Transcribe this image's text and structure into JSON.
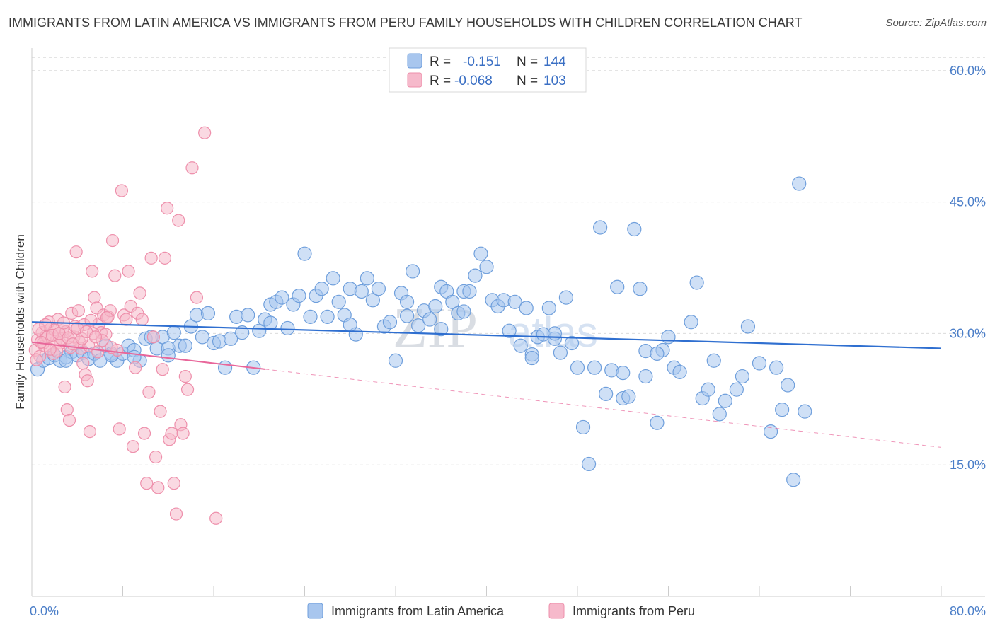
{
  "title": "IMMIGRANTS FROM LATIN AMERICA VS IMMIGRANTS FROM PERU FAMILY HOUSEHOLDS WITH CHILDREN CORRELATION CHART",
  "source": "Source: ZipAtlas.com",
  "watermark": {
    "zip": "ZIP",
    "atlas": "atlas"
  },
  "colors": {
    "blue": "#a8c6ee",
    "blue_stroke": "#6f9fdc",
    "blue_line": "#2f6fd0",
    "pink": "#f6b9cb",
    "pink_stroke": "#ee8fab",
    "pink_line": "#e8669a",
    "tick_text": "#4b7ec8",
    "grid": "#dcdcdc"
  },
  "legend": {
    "r_label": "R =",
    "n_label": "N =",
    "items": [
      {
        "r": "-0.151",
        "n": "144"
      },
      {
        "r": "-0.068",
        "n": "103"
      }
    ]
  },
  "bottom_legend": [
    "Immigrants from Latin America",
    "Immigrants from Peru"
  ],
  "chart_data": {
    "type": "scatter",
    "title": "IMMIGRANTS FROM LATIN AMERICA VS IMMIGRANTS FROM PERU FAMILY HOUSEHOLDS WITH CHILDREN CORRELATION CHART",
    "xlabel": "",
    "ylabel": "Family Households with Children",
    "xlim": [
      0,
      80
    ],
    "ylim": [
      0,
      62
    ],
    "x_tick_labels": [
      "0.0%",
      "80.0%"
    ],
    "y_ticks": [
      15,
      30,
      45,
      60
    ],
    "y_tick_labels": [
      "15.0%",
      "30.0%",
      "45.0%",
      "60.0%"
    ],
    "grid": true,
    "legend_position": "top-center",
    "series": [
      {
        "name": "Immigrants from Latin America",
        "r": -0.151,
        "n": 144,
        "trend": {
          "x": [
            0,
            80
          ],
          "y": [
            31.3,
            28.3
          ]
        },
        "points": [
          [
            0.5,
            25.9
          ],
          [
            1,
            26.9
          ],
          [
            1.5,
            27.2
          ],
          [
            2,
            27.5
          ],
          [
            2.5,
            26.9
          ],
          [
            3,
            27.3
          ],
          [
            3.5,
            27.9
          ],
          [
            4,
            27.5
          ],
          [
            4.5,
            27.8
          ],
          [
            5,
            27.1
          ],
          [
            5.5,
            27.7
          ],
          [
            6,
            26.9
          ],
          [
            6.5,
            28.6
          ],
          [
            7,
            27.7
          ],
          [
            7.5,
            26.9
          ],
          [
            8,
            27.7
          ],
          [
            8.5,
            28.6
          ],
          [
            9,
            28.1
          ],
          [
            9.5,
            26.9
          ],
          [
            10,
            29.4
          ],
          [
            10.5,
            29.6
          ],
          [
            11,
            28.3
          ],
          [
            11.5,
            29.6
          ],
          [
            12,
            28.3
          ],
          [
            12.5,
            30.1
          ],
          [
            13,
            28.6
          ],
          [
            13.5,
            28.6
          ],
          [
            14,
            30.8
          ],
          [
            14.5,
            32.1
          ],
          [
            15,
            29.6
          ],
          [
            15.5,
            32.3
          ],
          [
            16,
            28.9
          ],
          [
            16.5,
            29.1
          ],
          [
            17,
            26.1
          ],
          [
            17.5,
            29.4
          ],
          [
            18,
            31.9
          ],
          [
            18.5,
            30.1
          ],
          [
            19,
            32.1
          ],
          [
            19.5,
            26.1
          ],
          [
            20,
            30.3
          ],
          [
            20.5,
            31.6
          ],
          [
            21,
            33.3
          ],
          [
            21.5,
            33.6
          ],
          [
            22,
            34.1
          ],
          [
            22.5,
            30.6
          ],
          [
            23,
            33.3
          ],
          [
            23.5,
            34.3
          ],
          [
            24,
            39.1
          ],
          [
            24.5,
            31.9
          ],
          [
            25,
            34.3
          ],
          [
            25.5,
            35.1
          ],
          [
            26,
            31.9
          ],
          [
            26.5,
            36.3
          ],
          [
            27,
            33.6
          ],
          [
            27.5,
            32.1
          ],
          [
            28,
            35.1
          ],
          [
            28.5,
            29.9
          ],
          [
            29,
            34.8
          ],
          [
            29.5,
            36.3
          ],
          [
            30,
            33.8
          ],
          [
            30.5,
            35.1
          ],
          [
            31,
            30.8
          ],
          [
            31.5,
            31.3
          ],
          [
            32,
            26.9
          ],
          [
            32.5,
            34.6
          ],
          [
            33,
            33.6
          ],
          [
            33.5,
            37.1
          ],
          [
            34,
            30.9
          ],
          [
            34.5,
            32.6
          ],
          [
            35,
            31.6
          ],
          [
            35.5,
            33.1
          ],
          [
            36,
            35.3
          ],
          [
            36.5,
            34.8
          ],
          [
            37,
            33.6
          ],
          [
            37.5,
            32.3
          ],
          [
            38,
            34.8
          ],
          [
            38.5,
            34.8
          ],
          [
            39,
            36.6
          ],
          [
            39.5,
            39.1
          ],
          [
            40,
            37.6
          ],
          [
            40.5,
            33.8
          ],
          [
            41,
            33.1
          ],
          [
            41.5,
            33.8
          ],
          [
            42,
            30.3
          ],
          [
            42.5,
            33.6
          ],
          [
            43,
            28.6
          ],
          [
            43.5,
            32.9
          ],
          [
            44,
            27.6
          ],
          [
            44.5,
            29.6
          ],
          [
            45,
            29.9
          ],
          [
            45.5,
            32.9
          ],
          [
            46,
            29.4
          ],
          [
            46.5,
            27.8
          ],
          [
            47,
            34.1
          ],
          [
            47.5,
            28.9
          ],
          [
            48,
            26.1
          ],
          [
            48.5,
            19.3
          ],
          [
            49,
            15.1
          ],
          [
            49.5,
            26.1
          ],
          [
            50,
            42.1
          ],
          [
            50.5,
            23.1
          ],
          [
            51,
            25.8
          ],
          [
            51.5,
            35.3
          ],
          [
            52,
            22.6
          ],
          [
            52.5,
            22.8
          ],
          [
            53,
            41.9
          ],
          [
            53.5,
            35.1
          ],
          [
            54,
            25.1
          ],
          [
            55,
            19.8
          ],
          [
            55.5,
            28.1
          ],
          [
            56,
            29.6
          ],
          [
            56.5,
            26.1
          ],
          [
            57,
            25.6
          ],
          [
            58,
            31.3
          ],
          [
            58.5,
            35.8
          ],
          [
            59,
            22.6
          ],
          [
            59.5,
            23.6
          ],
          [
            60,
            26.9
          ],
          [
            60.5,
            20.8
          ],
          [
            61,
            22.3
          ],
          [
            62,
            23.6
          ],
          [
            62.5,
            25.1
          ],
          [
            63,
            30.8
          ],
          [
            64,
            26.6
          ],
          [
            65,
            18.8
          ],
          [
            65.5,
            26.1
          ],
          [
            66,
            21.3
          ],
          [
            66.5,
            24.1
          ],
          [
            67,
            13.3
          ],
          [
            67.5,
            47.1
          ],
          [
            68,
            21.1
          ],
          [
            52,
            25.5
          ],
          [
            54,
            28.0
          ],
          [
            55,
            27.7
          ],
          [
            44,
            27.2
          ],
          [
            46,
            30.0
          ],
          [
            33,
            32.0
          ],
          [
            38,
            32.5
          ],
          [
            28,
            31.0
          ],
          [
            36,
            30.5
          ],
          [
            21,
            31.2
          ],
          [
            12,
            27.5
          ],
          [
            9,
            27.3
          ],
          [
            3,
            26.9
          ],
          [
            7,
            27.5
          ]
        ]
      },
      {
        "name": "Immigrants from Peru",
        "r": -0.068,
        "n": 103,
        "trend": {
          "x": [
            0,
            80
          ],
          "y": [
            29.0,
            17.0
          ]
        },
        "points": [
          [
            0.3,
            28.1
          ],
          [
            0.5,
            29.3
          ],
          [
            0.7,
            27.4
          ],
          [
            0.9,
            30.1
          ],
          [
            1.1,
            28.6
          ],
          [
            1.3,
            29.8
          ],
          [
            1.5,
            31.3
          ],
          [
            1.7,
            30.6
          ],
          [
            1.9,
            27.7
          ],
          [
            2.1,
            29.1
          ],
          [
            2.3,
            31.6
          ],
          [
            2.5,
            28.9
          ],
          [
            2.7,
            30.3
          ],
          [
            2.9,
            23.9
          ],
          [
            3.1,
            21.3
          ],
          [
            3.3,
            20.1
          ],
          [
            3.5,
            32.3
          ],
          [
            3.7,
            29.6
          ],
          [
            3.9,
            39.3
          ],
          [
            4.1,
            32.6
          ],
          [
            4.3,
            28.3
          ],
          [
            4.5,
            26.6
          ],
          [
            4.7,
            25.3
          ],
          [
            4.9,
            24.6
          ],
          [
            5.1,
            18.8
          ],
          [
            5.3,
            37.1
          ],
          [
            5.5,
            34.1
          ],
          [
            5.7,
            32.9
          ],
          [
            5.9,
            31.1
          ],
          [
            6.1,
            30.1
          ],
          [
            6.3,
            32.1
          ],
          [
            6.5,
            29.9
          ],
          [
            6.7,
            31.9
          ],
          [
            6.9,
            32.6
          ],
          [
            7.1,
            40.6
          ],
          [
            7.3,
            36.6
          ],
          [
            7.5,
            28.1
          ],
          [
            7.7,
            19.1
          ],
          [
            7.9,
            46.3
          ],
          [
            8.1,
            32.1
          ],
          [
            8.3,
            31.6
          ],
          [
            8.5,
            37.1
          ],
          [
            8.7,
            33.1
          ],
          [
            8.9,
            17.1
          ],
          [
            9.1,
            26.1
          ],
          [
            9.3,
            32.3
          ],
          [
            9.5,
            34.6
          ],
          [
            9.7,
            31.6
          ],
          [
            9.9,
            18.6
          ],
          [
            10.1,
            12.9
          ],
          [
            10.3,
            23.3
          ],
          [
            10.5,
            38.6
          ],
          [
            10.7,
            29.6
          ],
          [
            10.9,
            15.9
          ],
          [
            11.1,
            12.4
          ],
          [
            11.3,
            21.1
          ],
          [
            11.5,
            25.9
          ],
          [
            11.7,
            38.6
          ],
          [
            11.9,
            44.3
          ],
          [
            12.1,
            17.9
          ],
          [
            12.3,
            18.6
          ],
          [
            12.5,
            12.9
          ],
          [
            12.7,
            9.4
          ],
          [
            12.9,
            42.9
          ],
          [
            13.1,
            19.6
          ],
          [
            13.3,
            18.6
          ],
          [
            13.5,
            25.1
          ],
          [
            13.7,
            23.6
          ],
          [
            14.1,
            48.9
          ],
          [
            14.5,
            34.1
          ],
          [
            15.2,
            52.9
          ],
          [
            16.2,
            8.9
          ],
          [
            1.0,
            28.9
          ],
          [
            1.4,
            29.6
          ],
          [
            2.0,
            30.4
          ],
          [
            2.2,
            28.0
          ],
          [
            2.6,
            29.4
          ],
          [
            3.0,
            30.2
          ],
          [
            3.4,
            28.4
          ],
          [
            3.8,
            30.8
          ],
          [
            4.2,
            29.0
          ],
          [
            4.6,
            31.0
          ],
          [
            5.0,
            28.6
          ],
          [
            5.4,
            30.0
          ],
          [
            5.8,
            27.9
          ],
          [
            6.2,
            29.2
          ],
          [
            6.6,
            31.8
          ],
          [
            7.0,
            28.4
          ],
          [
            0.4,
            27.0
          ],
          [
            0.6,
            30.5
          ],
          [
            0.8,
            29.0
          ],
          [
            1.2,
            31.0
          ],
          [
            1.6,
            28.2
          ],
          [
            1.8,
            29.8
          ],
          [
            2.4,
            30.0
          ],
          [
            2.8,
            31.2
          ],
          [
            3.2,
            29.5
          ],
          [
            3.6,
            28.8
          ],
          [
            4.0,
            30.6
          ],
          [
            4.4,
            29.4
          ],
          [
            4.8,
            30.2
          ],
          [
            5.2,
            31.5
          ],
          [
            5.6,
            29.6
          ]
        ]
      }
    ]
  }
}
